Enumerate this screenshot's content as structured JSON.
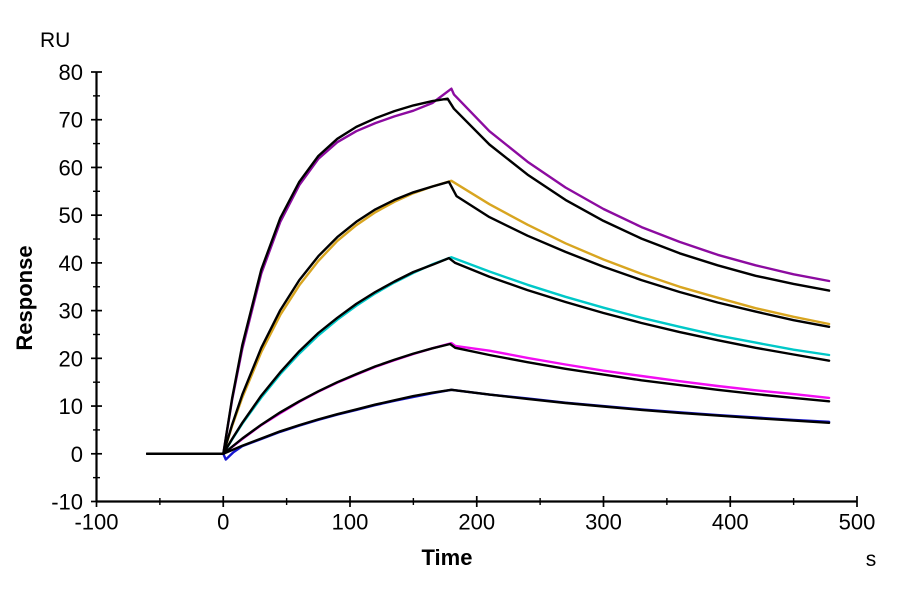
{
  "labels": {
    "y_unit": "RU",
    "y_axis": "Response",
    "x_axis": "Time",
    "x_unit": "s"
  },
  "chart_data": {
    "type": "line",
    "title": "",
    "xlabel": "Time",
    "xunit": "s",
    "ylabel": "Response",
    "yunit": "RU",
    "xlim": [
      -100,
      500
    ],
    "ylim": [
      -10,
      80
    ],
    "x_major_ticks": [
      -100,
      0,
      100,
      200,
      300,
      400,
      500
    ],
    "x_minor_step": 50,
    "y_major_ticks": [
      -10,
      0,
      10,
      20,
      30,
      40,
      50,
      60,
      70,
      80
    ],
    "y_minor_step": 5,
    "grid": false,
    "legend": "none",
    "description": "Surface plasmon resonance sensorgram: five concentration traces (colored) each overlaid with a black kinetic fit; baseline -60 to 0 s, association 0-180 s, dissociation 180-480 s",
    "colors": {
      "trace1": "#8c0ba0",
      "trace2": "#d8a520",
      "trace3": "#00c8c8",
      "trace4": "#f20df2",
      "trace5": "#1616cf",
      "fit": "#000000"
    },
    "series": [
      {
        "name": "curve-1-data",
        "role": "measured",
        "color": "#8c0ba0",
        "points": [
          [
            -60,
            0
          ],
          [
            0,
            0
          ],
          [
            7,
            11.3
          ],
          [
            15,
            22
          ],
          [
            30,
            37.8
          ],
          [
            45,
            48.6
          ],
          [
            60,
            56.3
          ],
          [
            75,
            61.8
          ],
          [
            90,
            65.3
          ],
          [
            105,
            67.6
          ],
          [
            120,
            69.3
          ],
          [
            135,
            70.7
          ],
          [
            150,
            71.9
          ],
          [
            165,
            73.5
          ],
          [
            180,
            76.5
          ],
          [
            182,
            75.3
          ],
          [
            210,
            67.6
          ],
          [
            240,
            61.2
          ],
          [
            270,
            55.8
          ],
          [
            300,
            51.3
          ],
          [
            330,
            47.5
          ],
          [
            360,
            44.4
          ],
          [
            390,
            41.7
          ],
          [
            420,
            39.5
          ],
          [
            450,
            37.6
          ],
          [
            478,
            36.2
          ]
        ]
      },
      {
        "name": "curve-2-data",
        "role": "measured",
        "color": "#d8a520",
        "points": [
          [
            -60,
            0
          ],
          [
            0,
            0
          ],
          [
            7,
            5.8
          ],
          [
            15,
            11.8
          ],
          [
            30,
            21.3
          ],
          [
            45,
            29.1
          ],
          [
            60,
            35.3
          ],
          [
            75,
            40.4
          ],
          [
            90,
            44.6
          ],
          [
            105,
            47.9
          ],
          [
            120,
            50.6
          ],
          [
            135,
            52.8
          ],
          [
            150,
            54.6
          ],
          [
            165,
            56.0
          ],
          [
            180,
            57.2
          ],
          [
            210,
            52.3
          ],
          [
            240,
            48.0
          ],
          [
            270,
            44.1
          ],
          [
            300,
            40.7
          ],
          [
            330,
            37.7
          ],
          [
            360,
            35.0
          ],
          [
            390,
            32.7
          ],
          [
            420,
            30.5
          ],
          [
            450,
            28.7
          ],
          [
            478,
            27.2
          ]
        ]
      },
      {
        "name": "curve-3-data",
        "role": "measured",
        "color": "#00c8c8",
        "points": [
          [
            -60,
            0
          ],
          [
            0,
            0
          ],
          [
            7,
            3.0
          ],
          [
            15,
            6.3
          ],
          [
            30,
            11.8
          ],
          [
            45,
            16.7
          ],
          [
            60,
            21.0
          ],
          [
            75,
            24.8
          ],
          [
            90,
            28.1
          ],
          [
            105,
            31.0
          ],
          [
            120,
            33.6
          ],
          [
            135,
            35.9
          ],
          [
            150,
            37.9
          ],
          [
            165,
            39.7
          ],
          [
            180,
            41.2
          ],
          [
            210,
            38.2
          ],
          [
            240,
            35.4
          ],
          [
            270,
            32.9
          ],
          [
            300,
            30.6
          ],
          [
            330,
            28.5
          ],
          [
            360,
            26.6
          ],
          [
            390,
            24.8
          ],
          [
            420,
            23.3
          ],
          [
            450,
            21.8
          ],
          [
            478,
            20.7
          ]
        ]
      },
      {
        "name": "curve-4-data",
        "role": "measured",
        "color": "#f20df2",
        "points": [
          [
            -60,
            0
          ],
          [
            0,
            0
          ],
          [
            15,
            3.1
          ],
          [
            30,
            6.0
          ],
          [
            45,
            8.5
          ],
          [
            60,
            10.9
          ],
          [
            75,
            13.0
          ],
          [
            90,
            14.9
          ],
          [
            105,
            16.6
          ],
          [
            120,
            18.2
          ],
          [
            135,
            19.6
          ],
          [
            150,
            20.9
          ],
          [
            165,
            22.1
          ],
          [
            180,
            23.2
          ],
          [
            183,
            22.6
          ],
          [
            210,
            21.6
          ],
          [
            240,
            20.1
          ],
          [
            270,
            18.7
          ],
          [
            300,
            17.4
          ],
          [
            330,
            16.3
          ],
          [
            360,
            15.2
          ],
          [
            390,
            14.2
          ],
          [
            420,
            13.3
          ],
          [
            450,
            12.5
          ],
          [
            478,
            11.7
          ]
        ]
      },
      {
        "name": "curve-5-data",
        "role": "measured",
        "color": "#1616cf",
        "points": [
          [
            -60,
            0
          ],
          [
            0,
            0
          ],
          [
            2,
            -1.2
          ],
          [
            8,
            0.3
          ],
          [
            15,
            1.6
          ],
          [
            30,
            3.1
          ],
          [
            45,
            4.6
          ],
          [
            60,
            5.9
          ],
          [
            75,
            7.1
          ],
          [
            90,
            8.2
          ],
          [
            105,
            9.2
          ],
          [
            120,
            10.2
          ],
          [
            135,
            11.1
          ],
          [
            150,
            11.9
          ],
          [
            165,
            12.7
          ],
          [
            180,
            13.4
          ],
          [
            210,
            12.4
          ],
          [
            240,
            11.6
          ],
          [
            270,
            10.7
          ],
          [
            300,
            10.0
          ],
          [
            330,
            9.3
          ],
          [
            360,
            8.7
          ],
          [
            390,
            8.1
          ],
          [
            420,
            7.6
          ],
          [
            450,
            7.1
          ],
          [
            478,
            6.7
          ]
        ]
      },
      {
        "name": "curve-1-fit",
        "role": "fit",
        "color": "#000000",
        "points": [
          [
            -60,
            0
          ],
          [
            0,
            0
          ],
          [
            7,
            11.6
          ],
          [
            15,
            22.8
          ],
          [
            30,
            38.6
          ],
          [
            45,
            49.4
          ],
          [
            60,
            57.0
          ],
          [
            75,
            62.4
          ],
          [
            90,
            66.0
          ],
          [
            105,
            68.5
          ],
          [
            120,
            70.3
          ],
          [
            135,
            71.8
          ],
          [
            150,
            73.0
          ],
          [
            165,
            73.9
          ],
          [
            177,
            74.4
          ],
          [
            182,
            72.3
          ],
          [
            210,
            64.8
          ],
          [
            240,
            58.5
          ],
          [
            270,
            53.2
          ],
          [
            300,
            48.8
          ],
          [
            330,
            45.1
          ],
          [
            360,
            42.0
          ],
          [
            390,
            39.5
          ],
          [
            420,
            37.3
          ],
          [
            450,
            35.6
          ],
          [
            478,
            34.2
          ]
        ]
      },
      {
        "name": "curve-2-fit",
        "role": "fit",
        "color": "#000000",
        "points": [
          [
            -60,
            0
          ],
          [
            0,
            0
          ],
          [
            7,
            6.1
          ],
          [
            15,
            12.4
          ],
          [
            30,
            22.2
          ],
          [
            45,
            30.1
          ],
          [
            60,
            36.4
          ],
          [
            75,
            41.4
          ],
          [
            90,
            45.4
          ],
          [
            105,
            48.6
          ],
          [
            120,
            51.2
          ],
          [
            135,
            53.2
          ],
          [
            150,
            54.8
          ],
          [
            165,
            56.0
          ],
          [
            178,
            57.0
          ],
          [
            184,
            54.0
          ],
          [
            210,
            49.6
          ],
          [
            240,
            45.7
          ],
          [
            270,
            42.3
          ],
          [
            300,
            39.2
          ],
          [
            330,
            36.4
          ],
          [
            360,
            33.9
          ],
          [
            390,
            31.7
          ],
          [
            420,
            29.8
          ],
          [
            450,
            28.0
          ],
          [
            478,
            26.6
          ]
        ]
      },
      {
        "name": "curve-3-fit",
        "role": "fit",
        "color": "#000000",
        "points": [
          [
            -60,
            0
          ],
          [
            0,
            0
          ],
          [
            7,
            3.1
          ],
          [
            15,
            6.5
          ],
          [
            30,
            12.2
          ],
          [
            45,
            17.1
          ],
          [
            60,
            21.5
          ],
          [
            75,
            25.3
          ],
          [
            90,
            28.5
          ],
          [
            105,
            31.4
          ],
          [
            120,
            33.9
          ],
          [
            135,
            36.1
          ],
          [
            150,
            38.1
          ],
          [
            165,
            39.6
          ],
          [
            178,
            41.0
          ],
          [
            183,
            40.0
          ],
          [
            210,
            37.1
          ],
          [
            240,
            34.3
          ],
          [
            270,
            31.8
          ],
          [
            300,
            29.5
          ],
          [
            330,
            27.4
          ],
          [
            360,
            25.5
          ],
          [
            390,
            23.8
          ],
          [
            420,
            22.2
          ],
          [
            450,
            20.8
          ],
          [
            478,
            19.5
          ]
        ]
      },
      {
        "name": "curve-4-fit",
        "role": "fit",
        "color": "#000000",
        "points": [
          [
            -60,
            0
          ],
          [
            0,
            0
          ],
          [
            15,
            3.2
          ],
          [
            30,
            6.1
          ],
          [
            45,
            8.7
          ],
          [
            60,
            11.0
          ],
          [
            75,
            13.1
          ],
          [
            90,
            15.0
          ],
          [
            105,
            16.7
          ],
          [
            120,
            18.3
          ],
          [
            135,
            19.7
          ],
          [
            150,
            21.0
          ],
          [
            165,
            22.1
          ],
          [
            179,
            23.0
          ],
          [
            183,
            22.2
          ],
          [
            210,
            20.7
          ],
          [
            240,
            19.2
          ],
          [
            270,
            17.8
          ],
          [
            300,
            16.6
          ],
          [
            330,
            15.4
          ],
          [
            360,
            14.4
          ],
          [
            390,
            13.4
          ],
          [
            420,
            12.5
          ],
          [
            450,
            11.7
          ],
          [
            478,
            11.0
          ]
        ]
      },
      {
        "name": "curve-5-fit",
        "role": "fit",
        "color": "#000000",
        "points": [
          [
            -60,
            0
          ],
          [
            0,
            0
          ],
          [
            15,
            1.7
          ],
          [
            30,
            3.2
          ],
          [
            45,
            4.7
          ],
          [
            60,
            6.0
          ],
          [
            75,
            7.2
          ],
          [
            90,
            8.3
          ],
          [
            105,
            9.3
          ],
          [
            120,
            10.3
          ],
          [
            135,
            11.2
          ],
          [
            150,
            12.1
          ],
          [
            165,
            12.8
          ],
          [
            180,
            13.4
          ],
          [
            210,
            12.4
          ],
          [
            240,
            11.5
          ],
          [
            270,
            10.65
          ],
          [
            300,
            9.9
          ],
          [
            330,
            9.2
          ],
          [
            360,
            8.56
          ],
          [
            390,
            8.0
          ],
          [
            420,
            7.45
          ],
          [
            450,
            6.96
          ],
          [
            478,
            6.5
          ]
        ]
      }
    ]
  }
}
